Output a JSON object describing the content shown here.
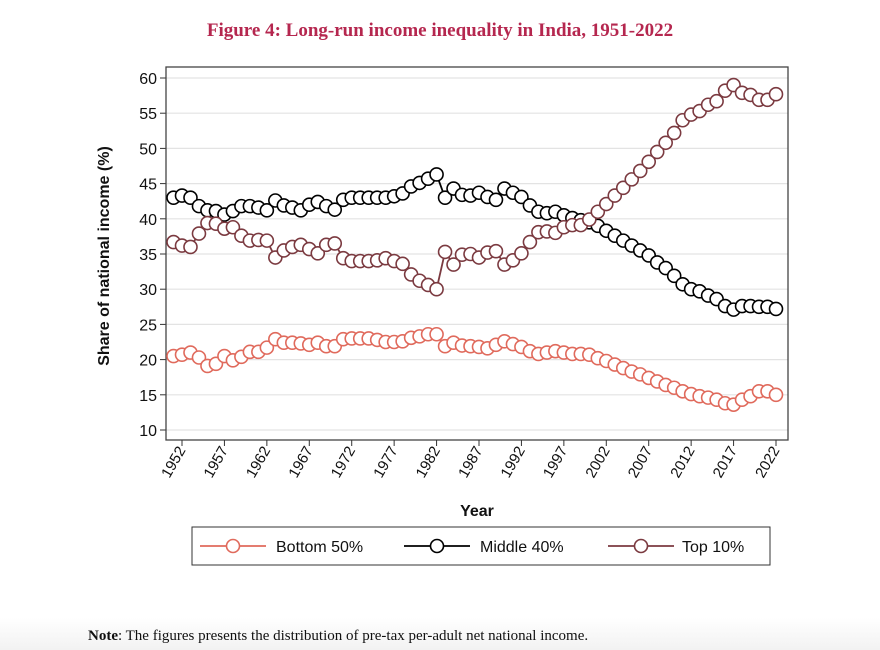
{
  "title": "Figure 4: Long-run income inequality in India, 1951-2022",
  "note": {
    "label": "Note",
    "text": ": The figures presents the distribution of pre-tax per-adult net national income."
  },
  "colors": {
    "title": "#b5274f",
    "bottom50": "#e06a5c",
    "middle40": "#000000",
    "top10": "#7b3a40",
    "grid": "#e3e3e3"
  },
  "chart_data": {
    "type": "line",
    "markers": "hollow-circle",
    "xlabel": "Year",
    "ylabel": "Share of national income (%)",
    "xlim": [
      1951,
      2022
    ],
    "ylim": [
      10,
      60
    ],
    "yticks": [
      10,
      15,
      20,
      25,
      30,
      35,
      40,
      45,
      50,
      55,
      60
    ],
    "xticks": [
      1952,
      1957,
      1962,
      1967,
      1972,
      1977,
      1982,
      1987,
      1992,
      1997,
      2002,
      2007,
      2012,
      2017,
      2022
    ],
    "grid": "horizontal",
    "legend_position": "bottom",
    "x_start": 1951,
    "series": [
      {
        "name": "Bottom 50%",
        "color_key": "bottom50",
        "values": [
          20.5,
          20.7,
          21.0,
          20.3,
          19.1,
          19.4,
          20.5,
          19.9,
          20.4,
          21.1,
          21.1,
          21.7,
          22.9,
          22.4,
          22.4,
          22.3,
          22.1,
          22.4,
          21.9,
          21.9,
          22.9,
          23.0,
          23.0,
          23.0,
          22.8,
          22.5,
          22.5,
          22.6,
          23.1,
          23.3,
          23.6,
          23.6,
          21.9,
          22.4,
          22.0,
          21.9,
          21.8,
          21.6,
          22.1,
          22.6,
          22.2,
          21.8,
          21.2,
          20.8,
          21.0,
          21.2,
          21.0,
          20.8,
          20.8,
          20.7,
          20.2,
          19.8,
          19.3,
          18.8,
          18.3,
          17.9,
          17.4,
          16.9,
          16.4,
          16.0,
          15.5,
          15.1,
          14.8,
          14.6,
          14.3,
          13.8,
          13.6,
          14.3,
          14.8,
          15.5,
          15.5,
          15.0
        ]
      },
      {
        "name": "Middle 40%",
        "color_key": "middle40",
        "values": [
          43.0,
          43.3,
          43.0,
          41.8,
          41.2,
          41.1,
          40.6,
          41.1,
          41.8,
          41.8,
          41.6,
          41.2,
          42.6,
          41.9,
          41.6,
          41.2,
          42.0,
          42.4,
          41.8,
          41.3,
          42.7,
          43.0,
          43.0,
          43.0,
          43.0,
          43.0,
          43.2,
          43.6,
          44.6,
          45.1,
          45.7,
          46.3,
          43.0,
          44.3,
          43.4,
          43.3,
          43.7,
          43.1,
          42.7,
          44.3,
          43.7,
          43.1,
          41.9,
          41.0,
          40.8,
          41.0,
          40.5,
          40.1,
          39.8,
          39.5,
          39.0,
          38.3,
          37.6,
          36.9,
          36.2,
          35.5,
          34.8,
          33.8,
          33.0,
          31.9,
          30.7,
          30.0,
          29.7,
          29.1,
          28.6,
          27.6,
          27.1,
          27.6,
          27.6,
          27.5,
          27.5,
          27.2
        ]
      },
      {
        "name": "Top 10%",
        "color_key": "top10",
        "values": [
          36.7,
          36.2,
          36.0,
          37.9,
          39.4,
          39.3,
          38.6,
          38.8,
          37.6,
          36.9,
          37.0,
          36.9,
          34.5,
          35.5,
          36.0,
          36.3,
          35.7,
          35.1,
          36.3,
          36.5,
          34.4,
          34.0,
          34.0,
          34.0,
          34.1,
          34.4,
          34.0,
          33.6,
          32.1,
          31.2,
          30.6,
          30.0,
          35.3,
          33.5,
          34.9,
          35.0,
          34.5,
          35.2,
          35.4,
          33.5,
          34.1,
          35.1,
          36.7,
          38.1,
          38.2,
          38.0,
          38.8,
          39.1,
          39.1,
          39.9,
          41.0,
          42.1,
          43.3,
          44.4,
          45.6,
          46.8,
          48.1,
          49.5,
          50.8,
          52.2,
          54.0,
          54.8,
          55.3,
          56.2,
          56.7,
          58.2,
          59.0,
          57.9,
          57.6,
          56.9,
          56.9,
          57.7
        ]
      }
    ]
  }
}
